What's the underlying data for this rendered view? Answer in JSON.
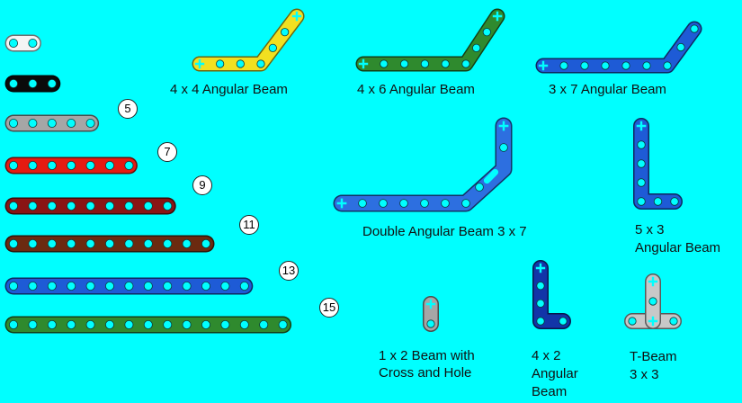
{
  "colors": {
    "background": "#00ffff",
    "white": "#f4f4f4",
    "black": "#0a0a0a",
    "gray": "#a6a6a6",
    "red": "#e51a12",
    "dark_red": "#8a1414",
    "brown": "#6b2a10",
    "blue": "#1e5bd6",
    "green": "#2f8a2e",
    "yellow": "#f2e020",
    "bright_blue": "#2d6fe0",
    "navy": "#1235a8",
    "light_gray": "#c8c8c8"
  },
  "straight_beams": [
    {
      "holes": 2,
      "color": "white",
      "label": ""
    },
    {
      "holes": 3,
      "color": "black",
      "label": ""
    },
    {
      "holes": 5,
      "color": "gray",
      "label": "5"
    },
    {
      "holes": 7,
      "color": "red",
      "label": "7"
    },
    {
      "holes": 9,
      "color": "dark_red",
      "label": "9"
    },
    {
      "holes": 11,
      "color": "brown",
      "label": "11"
    },
    {
      "holes": 13,
      "color": "blue",
      "label": "13"
    },
    {
      "holes": 15,
      "color": "green",
      "label": "15"
    }
  ],
  "parts": {
    "angular_4x4": {
      "label": "4 x 4 Angular Beam",
      "color": "yellow"
    },
    "angular_4x6": {
      "label": "4 x 6 Angular Beam",
      "color": "green"
    },
    "angular_3x7": {
      "label": "3 x 7 Angular Beam",
      "color": "blue"
    },
    "double_angular_3x7": {
      "label": "Double Angular Beam 3 x 7",
      "color": "bright_blue"
    },
    "angular_5x3": {
      "label_line1": "5 x 3",
      "label_line2": "Angular Beam",
      "color": "blue"
    },
    "beam_1x2_cross": {
      "label_line1": "1 x 2 Beam with",
      "label_line2": "Cross and Hole",
      "color": "gray"
    },
    "angular_4x2": {
      "label_line1": "4 x 2",
      "label_line2": "Angular",
      "label_line3": "Beam",
      "color": "navy"
    },
    "t_beam": {
      "label_line1": "T-Beam",
      "label_line2": "3 x 3",
      "color": "light_gray"
    }
  }
}
